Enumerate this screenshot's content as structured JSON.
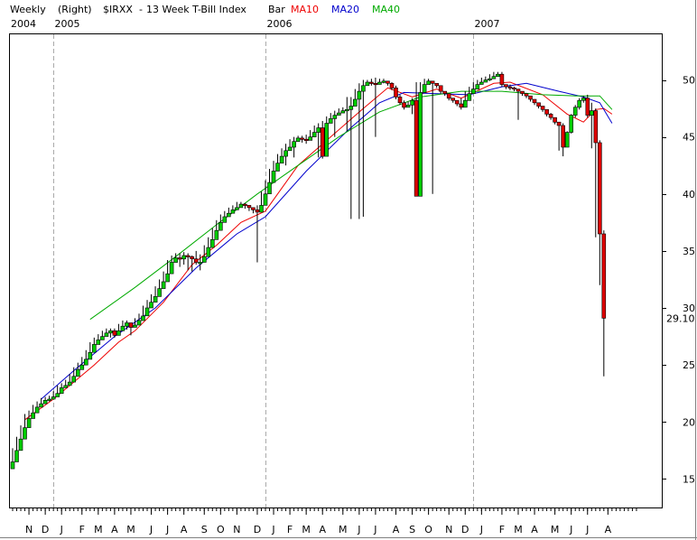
{
  "header": {
    "period": "Weekly",
    "scale": "(Right)",
    "symbol": "$IRXX",
    "name": "13 Week T-Bill Index",
    "style": "Bar",
    "ma10": "MA10",
    "ma20": "MA20",
    "ma40": "MA40"
  },
  "colors": {
    "up": "#00cc00",
    "down": "#dd0000",
    "ma10": "#ee0000",
    "ma20": "#0000cc",
    "ma40": "#00aa00",
    "grid": "#aaaaaa",
    "border": "#000000"
  },
  "chart_data": {
    "type": "candlestick",
    "ylim": [
      12.5,
      54
    ],
    "ticks": [
      15,
      20,
      25,
      30,
      35,
      40,
      45,
      50
    ],
    "last_label": "29.10",
    "last_value": 29.1,
    "year_labels": [
      {
        "label": "2004",
        "index": 0
      },
      {
        "label": "2005",
        "index": 10
      },
      {
        "label": "2006",
        "index": 62
      },
      {
        "label": "2007",
        "index": 113
      }
    ],
    "month_labels": [
      {
        "label": "N",
        "index": 4
      },
      {
        "label": "D",
        "index": 8
      },
      {
        "label": "J",
        "index": 12
      },
      {
        "label": "F",
        "index": 17
      },
      {
        "label": "M",
        "index": 21
      },
      {
        "label": "A",
        "index": 25
      },
      {
        "label": "M",
        "index": 29
      },
      {
        "label": "J",
        "index": 34
      },
      {
        "label": "J",
        "index": 38
      },
      {
        "label": "A",
        "index": 42
      },
      {
        "label": "S",
        "index": 47
      },
      {
        "label": "O",
        "index": 51
      },
      {
        "label": "N",
        "index": 55
      },
      {
        "label": "D",
        "index": 60
      },
      {
        "label": "J",
        "index": 64
      },
      {
        "label": "F",
        "index": 68
      },
      {
        "label": "M",
        "index": 72
      },
      {
        "label": "A",
        "index": 76
      },
      {
        "label": "M",
        "index": 81
      },
      {
        "label": "J",
        "index": 85
      },
      {
        "label": "J",
        "index": 89
      },
      {
        "label": "A",
        "index": 94
      },
      {
        "label": "S",
        "index": 98
      },
      {
        "label": "O",
        "index": 102
      },
      {
        "label": "N",
        "index": 107
      },
      {
        "label": "D",
        "index": 111
      },
      {
        "label": "J",
        "index": 115
      },
      {
        "label": "F",
        "index": 120
      },
      {
        "label": "M",
        "index": 124
      },
      {
        "label": "A",
        "index": 128
      },
      {
        "label": "M",
        "index": 133
      },
      {
        "label": "J",
        "index": 137
      },
      {
        "label": "J",
        "index": 141
      },
      {
        "label": "A",
        "index": 146
      }
    ],
    "close": [
      16.5,
      17.5,
      18.5,
      19.5,
      20.3,
      20.8,
      21.3,
      21.6,
      21.9,
      22.0,
      22.2,
      22.5,
      23.0,
      23.2,
      23.5,
      24.0,
      24.6,
      25.0,
      25.5,
      26.1,
      26.8,
      27.2,
      27.5,
      27.8,
      28.0,
      27.6,
      28.0,
      28.4,
      28.7,
      28.3,
      28.5,
      28.9,
      29.3,
      30.0,
      30.5,
      31.0,
      31.7,
      32.3,
      33.0,
      34.0,
      34.4,
      34.3,
      34.6,
      34.5,
      34.3,
      34.0,
      34.0,
      34.5,
      35.3,
      36.0,
      36.8,
      37.5,
      38.0,
      38.3,
      38.6,
      38.8,
      39.1,
      39.0,
      38.8,
      38.6,
      38.4,
      39.0,
      40.0,
      41.0,
      42.0,
      42.7,
      43.3,
      43.8,
      44.1,
      44.6,
      44.9,
      44.8,
      44.7,
      45.0,
      45.4,
      45.8,
      43.3,
      46.2,
      46.6,
      46.9,
      47.1,
      47.3,
      47.4,
      47.7,
      48.3,
      49.0,
      49.5,
      49.8,
      49.7,
      49.6,
      49.8,
      49.9,
      49.7,
      49.3,
      48.5,
      48.0,
      47.6,
      47.8,
      48.2,
      39.8,
      48.9,
      49.6,
      49.9,
      49.7,
      49.5,
      49.0,
      48.8,
      48.4,
      48.2,
      47.9,
      47.6,
      48.2,
      48.8,
      49.2,
      49.6,
      49.8,
      50.0,
      50.1,
      50.3,
      50.5,
      49.6,
      49.4,
      49.3,
      49.2,
      49.0,
      48.8,
      48.6,
      48.3,
      48.0,
      47.7,
      47.4,
      47.0,
      46.7,
      46.3,
      46.0,
      44.1,
      45.4,
      46.9,
      47.6,
      48.2,
      48.4,
      46.9,
      47.3,
      44.5,
      36.5,
      29.1
    ],
    "range": [
      [
        16.3,
        17.7
      ],
      [
        17.3,
        18.7
      ],
      [
        18.3,
        19.7
      ],
      [
        19.3,
        20.7
      ],
      [
        20.1,
        21.0
      ],
      [
        20.6,
        21.5
      ],
      [
        21.1,
        21.8
      ],
      [
        21.4,
        22.1
      ],
      [
        21.7,
        22.2
      ],
      [
        21.8,
        22.3
      ],
      [
        22.0,
        22.7
      ],
      [
        22.3,
        23.2
      ],
      [
        22.8,
        23.4
      ],
      [
        23.0,
        23.7
      ],
      [
        23.3,
        24.2
      ],
      [
        23.8,
        24.8
      ],
      [
        24.4,
        25.2
      ],
      [
        24.8,
        25.7
      ],
      [
        25.3,
        26.3
      ],
      [
        25.9,
        27.0
      ],
      [
        26.6,
        27.4
      ],
      [
        27.0,
        27.7
      ],
      [
        27.3,
        28.0
      ],
      [
        27.6,
        28.2
      ],
      [
        27.4,
        28.2
      ],
      [
        27.4,
        28.2
      ],
      [
        27.8,
        28.6
      ],
      [
        28.2,
        28.9
      ],
      [
        28.1,
        28.9
      ],
      [
        27.6,
        28.7
      ],
      [
        28.3,
        29.1
      ],
      [
        28.7,
        29.5
      ],
      [
        29.1,
        30.2
      ],
      [
        29.8,
        30.7
      ],
      [
        30.3,
        31.2
      ],
      [
        30.8,
        31.9
      ],
      [
        31.5,
        32.5
      ],
      [
        32.1,
        33.2
      ],
      [
        32.8,
        34.2
      ],
      [
        33.8,
        34.6
      ],
      [
        34.1,
        34.8
      ],
      [
        33.6,
        34.8
      ],
      [
        33.8,
        34.9
      ],
      [
        33.3,
        34.8
      ],
      [
        33.2,
        34.6
      ],
      [
        33.8,
        35.0
      ],
      [
        33.3,
        34.7
      ],
      [
        34.3,
        35.5
      ],
      [
        35.1,
        36.2
      ],
      [
        35.8,
        37.0
      ],
      [
        36.6,
        37.7
      ],
      [
        37.3,
        38.2
      ],
      [
        37.8,
        38.5
      ],
      [
        38.1,
        38.8
      ],
      [
        38.4,
        39.0
      ],
      [
        38.6,
        39.3
      ],
      [
        38.9,
        39.3
      ],
      [
        38.7,
        39.2
      ],
      [
        38.5,
        39.0
      ],
      [
        38.3,
        38.8
      ],
      [
        34.0,
        39.0
      ],
      [
        38.8,
        40.2
      ],
      [
        39.8,
        41.2
      ],
      [
        40.8,
        42.2
      ],
      [
        41.8,
        42.9
      ],
      [
        42.5,
        43.5
      ],
      [
        43.1,
        44.0
      ],
      [
        42.5,
        44.4
      ],
      [
        43.9,
        44.8
      ],
      [
        43.2,
        45.0
      ],
      [
        44.7,
        45.1
      ],
      [
        44.5,
        45.1
      ],
      [
        44.4,
        45.2
      ],
      [
        44.8,
        45.6
      ],
      [
        45.2,
        46.0
      ],
      [
        43.2,
        46.2
      ],
      [
        43.1,
        46.4
      ],
      [
        46.0,
        46.8
      ],
      [
        46.4,
        47.1
      ],
      [
        45.0,
        47.3
      ],
      [
        46.9,
        47.5
      ],
      [
        47.1,
        47.6
      ],
      [
        45.5,
        48.5
      ],
      [
        37.8,
        48.5
      ],
      [
        48.1,
        49.2
      ],
      [
        37.8,
        49.7
      ],
      [
        38.0,
        50.0
      ],
      [
        49.6,
        50.0
      ],
      [
        49.5,
        50.1
      ],
      [
        45.0,
        50.2
      ],
      [
        49.6,
        50.1
      ],
      [
        49.7,
        50.1
      ],
      [
        49.5,
        49.9
      ],
      [
        49.1,
        49.8
      ],
      [
        48.3,
        49.5
      ],
      [
        47.8,
        48.7
      ],
      [
        47.4,
        48.2
      ],
      [
        47.6,
        48.1
      ],
      [
        47.0,
        48.4
      ],
      [
        39.8,
        49.8
      ],
      [
        48.7,
        49.8
      ],
      [
        49.4,
        50.1
      ],
      [
        49.7,
        50.1
      ],
      [
        40.0,
        49.9
      ],
      [
        49.3,
        49.7
      ],
      [
        48.8,
        49.2
      ],
      [
        48.6,
        49.0
      ],
      [
        48.2,
        48.6
      ],
      [
        48.0,
        48.4
      ],
      [
        47.7,
        48.1
      ],
      [
        47.4,
        48.4
      ],
      [
        48.0,
        49.0
      ],
      [
        48.6,
        49.4
      ],
      [
        49.0,
        49.8
      ],
      [
        49.4,
        50.0
      ],
      [
        49.6,
        50.2
      ],
      [
        49.8,
        50.3
      ],
      [
        49.9,
        50.5
      ],
      [
        50.1,
        50.7
      ],
      [
        50.3,
        50.7
      ],
      [
        49.4,
        50.7
      ],
      [
        49.2,
        49.6
      ],
      [
        49.1,
        49.6
      ],
      [
        49.0,
        49.4
      ],
      [
        46.5,
        49.2
      ],
      [
        48.6,
        49.0
      ],
      [
        48.4,
        48.8
      ],
      [
        48.1,
        48.6
      ],
      [
        47.8,
        48.3
      ],
      [
        47.5,
        47.9
      ],
      [
        47.2,
        47.6
      ],
      [
        46.8,
        47.4
      ],
      [
        46.5,
        47.1
      ],
      [
        46.1,
        46.7
      ],
      [
        43.8,
        46.3
      ],
      [
        43.3,
        46.2
      ],
      [
        44.1,
        45.5
      ],
      [
        45.3,
        47.0
      ],
      [
        46.7,
        47.8
      ],
      [
        47.4,
        48.4
      ],
      [
        48.0,
        48.6
      ],
      [
        46.7,
        48.7
      ],
      [
        44.0,
        48.0
      ],
      [
        36.2,
        47.5
      ],
      [
        32.0,
        44.7
      ],
      [
        24.0,
        36.8
      ]
    ],
    "ma10": [
      {
        "index": 3,
        "value": 20.2
      },
      {
        "index": 10,
        "value": 22.0
      },
      {
        "index": 20,
        "value": 25.0
      },
      {
        "index": 26,
        "value": 27.0
      },
      {
        "index": 30,
        "value": 28.0
      },
      {
        "index": 37,
        "value": 30.5
      },
      {
        "index": 44,
        "value": 33.8
      },
      {
        "index": 50,
        "value": 35.5
      },
      {
        "index": 56,
        "value": 37.5
      },
      {
        "index": 62,
        "value": 38.5
      },
      {
        "index": 70,
        "value": 42.5
      },
      {
        "index": 78,
        "value": 45.0
      },
      {
        "index": 86,
        "value": 47.5
      },
      {
        "index": 92,
        "value": 49.3
      },
      {
        "index": 98,
        "value": 48.5
      },
      {
        "index": 104,
        "value": 49.2
      },
      {
        "index": 110,
        "value": 48.4
      },
      {
        "index": 118,
        "value": 49.7
      },
      {
        "index": 122,
        "value": 49.8
      },
      {
        "index": 130,
        "value": 48.7
      },
      {
        "index": 136,
        "value": 47.0
      },
      {
        "index": 140,
        "value": 46.3
      },
      {
        "index": 143,
        "value": 47.4
      },
      {
        "index": 145,
        "value": 47.5
      },
      {
        "index": 147,
        "value": 47.0
      }
    ],
    "ma20": [
      {
        "index": 7,
        "value": 22.0
      },
      {
        "index": 15,
        "value": 24.5
      },
      {
        "index": 25,
        "value": 27.5
      },
      {
        "index": 35,
        "value": 30.0
      },
      {
        "index": 45,
        "value": 33.5
      },
      {
        "index": 55,
        "value": 36.5
      },
      {
        "index": 62,
        "value": 38.0
      },
      {
        "index": 72,
        "value": 42.0
      },
      {
        "index": 82,
        "value": 45.5
      },
      {
        "index": 90,
        "value": 48.0
      },
      {
        "index": 96,
        "value": 48.9
      },
      {
        "index": 104,
        "value": 48.8
      },
      {
        "index": 112,
        "value": 48.7
      },
      {
        "index": 120,
        "value": 49.4
      },
      {
        "index": 126,
        "value": 49.7
      },
      {
        "index": 134,
        "value": 49.0
      },
      {
        "index": 140,
        "value": 48.5
      },
      {
        "index": 144,
        "value": 48.0
      },
      {
        "index": 147,
        "value": 46.2
      }
    ],
    "ma40": [
      {
        "index": 19,
        "value": 29.0
      },
      {
        "index": 30,
        "value": 31.8
      },
      {
        "index": 40,
        "value": 34.5
      },
      {
        "index": 50,
        "value": 37.3
      },
      {
        "index": 60,
        "value": 40.0
      },
      {
        "index": 70,
        "value": 42.5
      },
      {
        "index": 80,
        "value": 45.0
      },
      {
        "index": 90,
        "value": 47.2
      },
      {
        "index": 100,
        "value": 48.5
      },
      {
        "index": 110,
        "value": 49.0
      },
      {
        "index": 120,
        "value": 49.0
      },
      {
        "index": 130,
        "value": 48.7
      },
      {
        "index": 138,
        "value": 48.6
      },
      {
        "index": 144,
        "value": 48.6
      },
      {
        "index": 147,
        "value": 47.4
      }
    ]
  }
}
